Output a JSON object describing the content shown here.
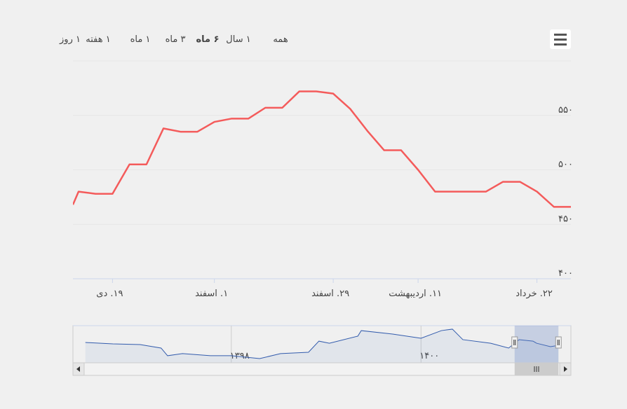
{
  "chart_data": [
    {
      "type": "line",
      "range_selector": {
        "buttons": [
          "۱ روز",
          "۱ هفته",
          "۱ ماه",
          "۳ ماه",
          "۶ ماه",
          "۱ سال",
          "همه"
        ],
        "selected": 4
      },
      "x": [
        -0.33,
        0,
        1,
        2,
        3,
        4,
        5,
        6,
        7,
        8,
        9,
        10,
        11,
        12,
        13,
        14,
        15,
        16,
        17,
        18,
        19,
        20,
        21,
        22,
        23,
        24,
        25,
        26,
        27,
        28,
        29
      ],
      "series": [
        {
          "color": "#f45b5b",
          "values": [
            468,
            480,
            478,
            478,
            505,
            505,
            538,
            535,
            535,
            544,
            547,
            547,
            557,
            557,
            572,
            572,
            570,
            556,
            536,
            518,
            518,
            500,
            480,
            480,
            480,
            480,
            489,
            489,
            480,
            466,
            466
          ]
        }
      ],
      "xlim": [
        -0.33,
        29
      ],
      "xticks": [
        {
          "value": 2,
          "label": "۱۹. دی"
        },
        {
          "value": 8,
          "label": "۱. اسفند"
        },
        {
          "value": 15,
          "label": "۲۹. اسفند"
        },
        {
          "value": 20,
          "label": "۱۱. اردیبهشت"
        },
        {
          "value": 27,
          "label": "۲۲. خرداد"
        }
      ],
      "ylim": [
        400,
        600
      ],
      "yticks": [
        {
          "value": 400,
          "label": "۴۰۰"
        },
        {
          "value": 450,
          "label": "۴۵۰"
        },
        {
          "value": 500,
          "label": "۵۰۰"
        },
        {
          "value": 550,
          "label": "۵۵۰"
        },
        {
          "value": 600,
          "label": ""
        }
      ],
      "grid": true
    },
    {
      "type": "area",
      "x": [
        2.5,
        8,
        13.5,
        17.7,
        19,
        22,
        27.6,
        31.8,
        37.5,
        41.7,
        47.3,
        49.4,
        51.5,
        57.2,
        57.9,
        64.2,
        69.9,
        74,
        76.2,
        78.3,
        83.9,
        87.5,
        89.6,
        92.4,
        93.1,
        95.9,
        97.5
      ],
      "series": [
        {
          "color": "#335cad",
          "values": [
            464,
            453,
            447,
            419,
            357,
            374,
            357,
            357,
            334,
            374,
            385,
            475,
            458,
            515,
            560,
            532,
            498,
            560,
            572,
            487,
            458,
            419,
            487,
            475,
            458,
            430,
            441
          ]
        }
      ],
      "xlim": [
        0,
        100
      ],
      "ylim": [
        300,
        600
      ],
      "xticks": [
        {
          "value": 31.8,
          "label": "۱۳۹۸"
        },
        {
          "value": 69.9,
          "label": "۱۴۰۰"
        }
      ],
      "selected_range": [
        88.7,
        97.5
      ]
    }
  ]
}
